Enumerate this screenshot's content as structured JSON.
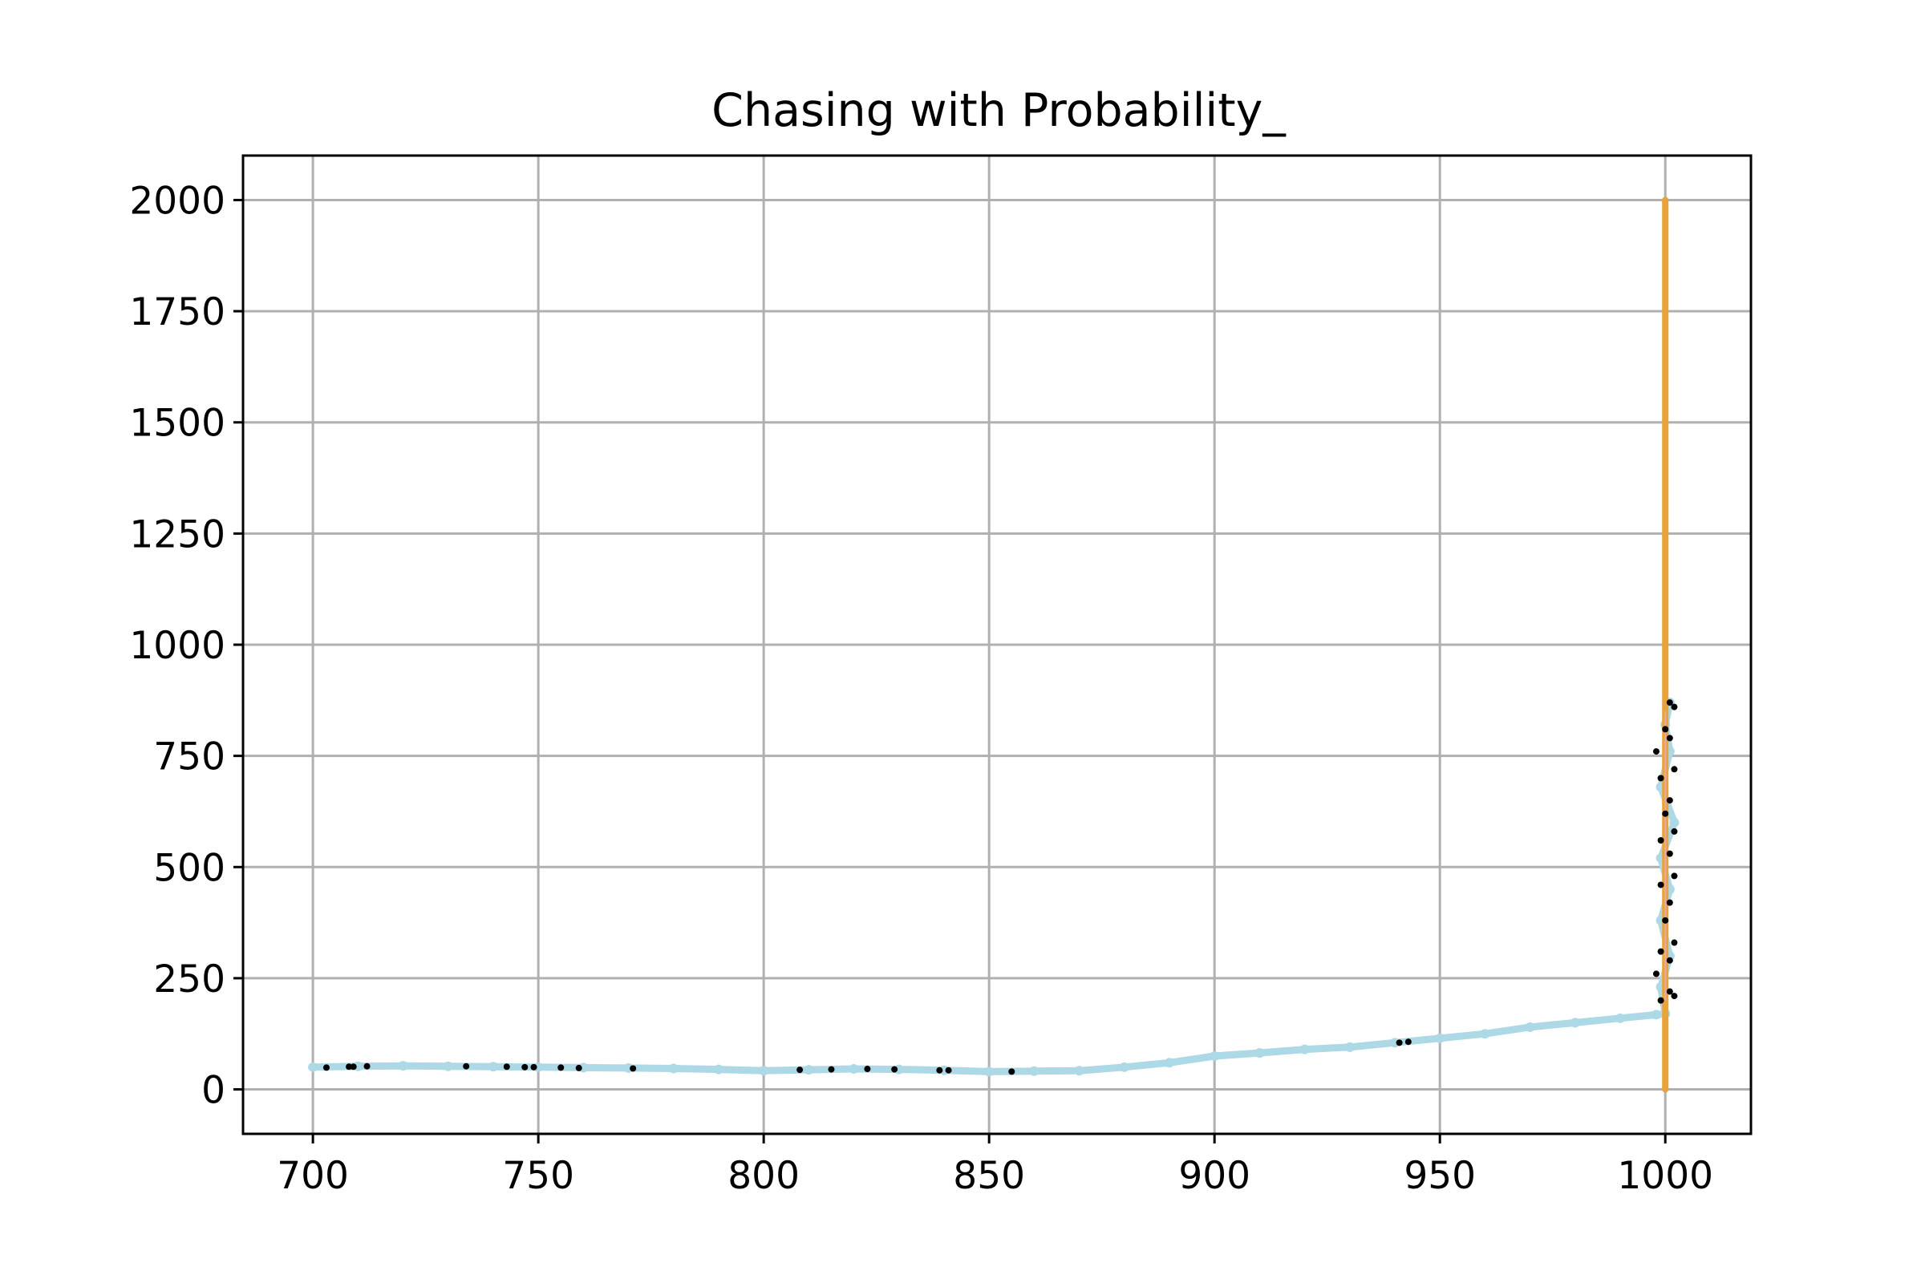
{
  "chart_data": {
    "type": "scatter",
    "title": "Chasing with Probability_",
    "xlabel": "",
    "ylabel": "",
    "xlim": [
      684.5,
      1019
    ],
    "ylim": [
      -100,
      2100
    ],
    "xticks": [
      700,
      750,
      800,
      850,
      900,
      950,
      1000
    ],
    "yticks": [
      0,
      250,
      500,
      750,
      1000,
      1250,
      1500,
      1750,
      2000
    ],
    "xtick_labels": [
      "700",
      "750",
      "800",
      "850",
      "900",
      "950",
      "1000"
    ],
    "ytick_labels": [
      "0",
      "250",
      "500",
      "750",
      "1000",
      "1250",
      "1500",
      "1750",
      "2000"
    ],
    "grid": true,
    "legend": "none",
    "colors": {
      "path": "#add8e6",
      "markers": "#000000",
      "target": "#e8a33a",
      "segment": "#e9a9a9"
    },
    "series": [
      {
        "label_shown": false,
        "kind": "path",
        "points": [
          [
            700,
            50
          ],
          [
            710,
            52
          ],
          [
            720,
            53
          ],
          [
            730,
            52
          ],
          [
            740,
            51
          ],
          [
            750,
            50
          ],
          [
            760,
            49
          ],
          [
            770,
            48
          ],
          [
            780,
            47
          ],
          [
            790,
            45
          ],
          [
            800,
            42
          ],
          [
            810,
            44
          ],
          [
            820,
            46
          ],
          [
            830,
            45
          ],
          [
            840,
            43
          ],
          [
            850,
            40
          ],
          [
            860,
            41
          ],
          [
            870,
            42
          ],
          [
            880,
            50
          ],
          [
            890,
            60
          ],
          [
            900,
            75
          ],
          [
            910,
            82
          ],
          [
            920,
            90
          ],
          [
            930,
            95
          ],
          [
            940,
            105
          ],
          [
            950,
            115
          ],
          [
            960,
            125
          ],
          [
            970,
            140
          ],
          [
            980,
            150
          ],
          [
            990,
            160
          ],
          [
            998,
            168
          ],
          [
            1000,
            170
          ],
          [
            999,
            230
          ],
          [
            1001,
            300
          ],
          [
            999,
            380
          ],
          [
            1001,
            450
          ],
          [
            999,
            520
          ],
          [
            1002,
            600
          ],
          [
            999,
            680
          ],
          [
            1001,
            760
          ],
          [
            1000,
            820
          ],
          [
            1001,
            870
          ]
        ]
      },
      {
        "label_shown": false,
        "kind": "markers",
        "points": [
          [
            703,
            49
          ],
          [
            708,
            51
          ],
          [
            709,
            51
          ],
          [
            712,
            52
          ],
          [
            734,
            52
          ],
          [
            743,
            51
          ],
          [
            747,
            50
          ],
          [
            749,
            50
          ],
          [
            755,
            49
          ],
          [
            759,
            48
          ],
          [
            771,
            47
          ],
          [
            808,
            44
          ],
          [
            815,
            45
          ],
          [
            823,
            46
          ],
          [
            829,
            45
          ],
          [
            839,
            43
          ],
          [
            841,
            43
          ],
          [
            855,
            40
          ],
          [
            941,
            105
          ],
          [
            943,
            107
          ],
          [
            999,
            200
          ],
          [
            1001,
            220
          ],
          [
            1002,
            210
          ],
          [
            998,
            260
          ],
          [
            1001,
            290
          ],
          [
            999,
            310
          ],
          [
            1002,
            330
          ],
          [
            1000,
            380
          ],
          [
            1001,
            420
          ],
          [
            999,
            460
          ],
          [
            1002,
            480
          ],
          [
            1001,
            530
          ],
          [
            999,
            560
          ],
          [
            1002,
            580
          ],
          [
            1000,
            620
          ],
          [
            1001,
            650
          ],
          [
            999,
            700
          ],
          [
            1002,
            720
          ],
          [
            998,
            760
          ],
          [
            1001,
            790
          ],
          [
            1000,
            810
          ],
          [
            1002,
            860
          ],
          [
            1001,
            870
          ]
        ]
      },
      {
        "label_shown": false,
        "kind": "vertical-line",
        "x": 1000,
        "y_range": [
          0,
          2000
        ]
      },
      {
        "label_shown": false,
        "kind": "segment",
        "points": [
          [
            1000,
            200
          ],
          [
            1000,
            850
          ]
        ]
      }
    ]
  }
}
